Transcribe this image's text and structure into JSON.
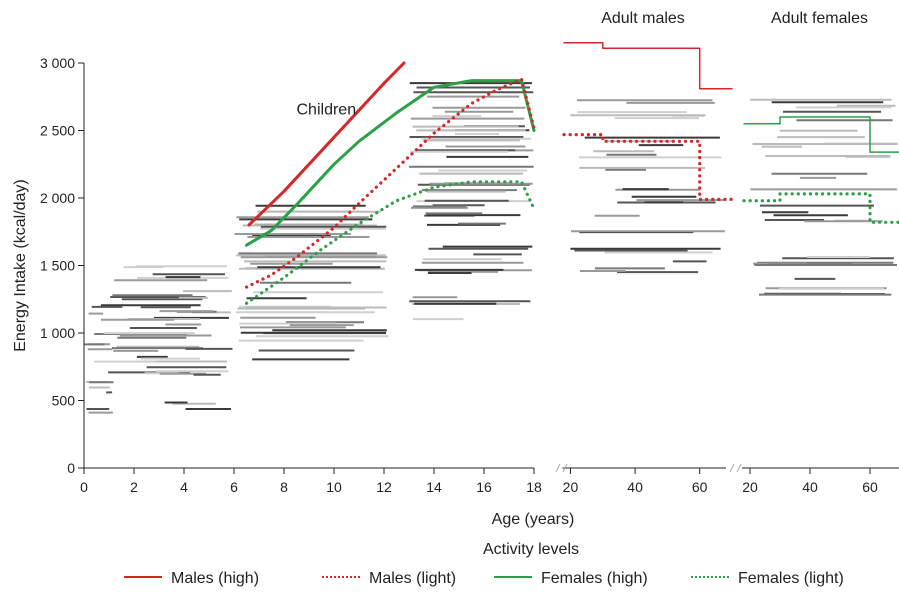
{
  "chart_data": {
    "type": "line",
    "ylabel": "Energy Intake (kcal/day)",
    "xlabel": "Age (years)",
    "ylim": [
      0,
      3000
    ],
    "yticks": [
      0,
      500,
      1000,
      1500,
      2000,
      2500,
      3000
    ],
    "ytick_labels": [
      "0",
      "500",
      "1 000",
      "1 500",
      "2 000",
      "2 500",
      "3 000"
    ],
    "legend": {
      "title": "Activity levels",
      "placement": "bottom",
      "entries": [
        {
          "label": "Males (high)",
          "color": "#d62728",
          "style": "solid"
        },
        {
          "label": "Males (light)",
          "color": "#d62728",
          "style": "dotted"
        },
        {
          "label": "Females (high)",
          "color": "#2ca048",
          "style": "solid"
        },
        {
          "label": "Females (light)",
          "color": "#2ca048",
          "style": "dotted"
        }
      ]
    },
    "panels": [
      {
        "id": "children",
        "title": "",
        "annotation": "Children",
        "xlim": [
          0,
          18
        ],
        "xticks": [
          0,
          2,
          4,
          6,
          8,
          10,
          12,
          14,
          16,
          18
        ],
        "series": [
          {
            "key": "males_high",
            "style": "solid",
            "color": "#d62728",
            "x": [
              6.6,
              8,
              9,
              10,
              11,
              12,
              12.8
            ],
            "y": [
              1800,
              2050,
              2250,
              2450,
              2650,
              2850,
              3000
            ]
          },
          {
            "key": "females_high",
            "style": "solid",
            "color": "#2ca048",
            "x": [
              6.5,
              7.5,
              8.5,
              10,
              11,
              12.5,
              14,
              15.5,
              16.5,
              17.5,
              18
            ],
            "y": [
              1650,
              1760,
              1950,
              2250,
              2420,
              2630,
              2820,
              2870,
              2870,
              2870,
              2500
            ]
          },
          {
            "key": "males_light",
            "style": "dotted",
            "color": "#d62728",
            "x": [
              6.5,
              7.5,
              8.5,
              10,
              11,
              12.5,
              14,
              15.5,
              16.5,
              17.5,
              18
            ],
            "y": [
              1340,
              1430,
              1560,
              1780,
              1960,
              2220,
              2480,
              2700,
              2800,
              2880,
              2520
            ]
          },
          {
            "key": "females_light",
            "style": "dotted",
            "color": "#2ca048",
            "x": [
              6.5,
              8,
              9.5,
              11,
              12.5,
              14,
              15.5,
              17.5,
              18
            ],
            "y": [
              1220,
              1410,
              1620,
              1810,
              1980,
              2080,
              2120,
              2120,
              1920
            ]
          }
        ]
      },
      {
        "id": "adult_males",
        "title": "Adult males",
        "xlim": [
          18,
          70
        ],
        "xticks": [
          20,
          40,
          60
        ],
        "series": [
          {
            "key": "males_high",
            "style": "solid",
            "color": "#d62728",
            "x": [
              18,
              30,
              30,
              60,
              60,
              70
            ],
            "y": [
              3150,
              3150,
              3110,
              3110,
              2810,
              2810
            ]
          },
          {
            "key": "males_light",
            "style": "dotted",
            "color": "#d62728",
            "x": [
              18,
              30,
              30,
              60,
              60,
              70
            ],
            "y": [
              2470,
              2470,
              2420,
              2420,
              1990,
              1990
            ]
          }
        ]
      },
      {
        "id": "adult_females",
        "title": "Adult females",
        "xlim": [
          18,
          70
        ],
        "xticks": [
          20,
          40,
          60
        ],
        "series": [
          {
            "key": "females_high",
            "style": "solid",
            "color": "#2ca048",
            "x": [
              18,
              30,
              30,
              60,
              60,
              70
            ],
            "y": [
              2550,
              2550,
              2600,
              2600,
              2340,
              2340
            ]
          },
          {
            "key": "females_light",
            "style": "dotted",
            "color": "#2ca048",
            "x": [
              18,
              30,
              30,
              60,
              60,
              70
            ],
            "y": [
              1980,
              1980,
              2030,
              2030,
              1820,
              1820
            ]
          }
        ]
      }
    ]
  }
}
